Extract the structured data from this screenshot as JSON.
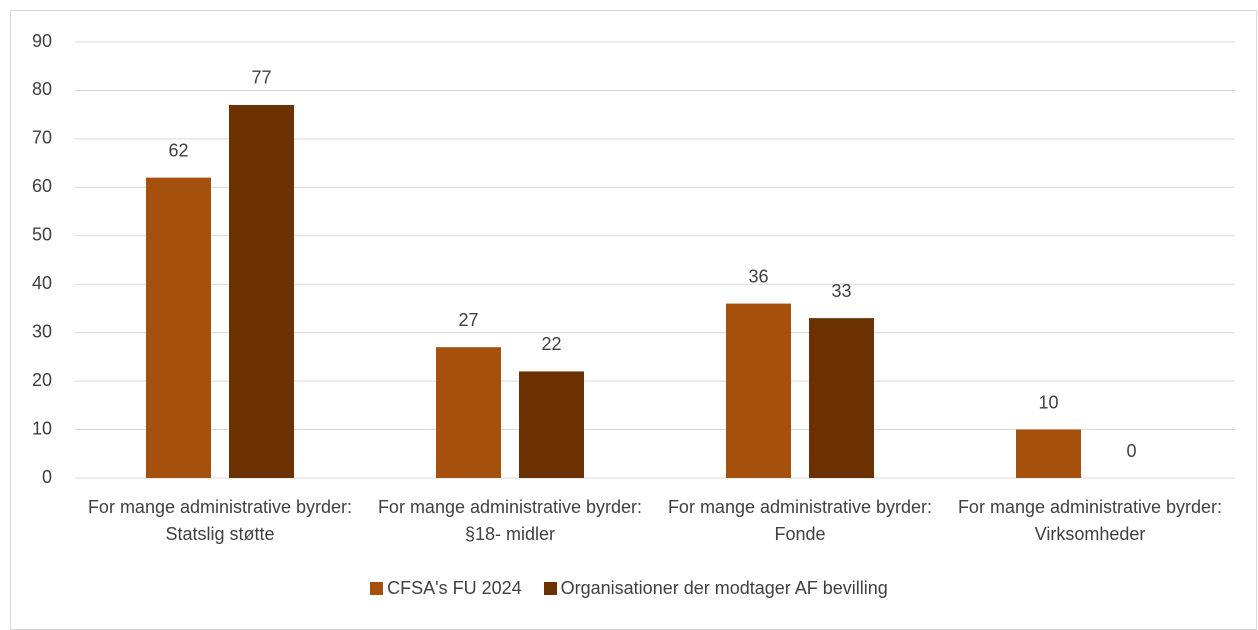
{
  "chart_data": {
    "type": "bar",
    "categories": [
      "For mange administrative byrder: Statslig støtte",
      "For mange administrative byrder: §18- midler",
      "For mange administrative byrder: Fonde",
      "For mange administrative byrder: Virksomheder"
    ],
    "series": [
      {
        "name": "CFSA's FU 2024",
        "color": "#a5500c",
        "values": [
          62,
          27,
          36,
          10
        ]
      },
      {
        "name": "Organisationer der modtager AF bevilling",
        "color": "#6b3200",
        "values": [
          77,
          22,
          33,
          0
        ]
      }
    ],
    "ylim": [
      0,
      90
    ],
    "yticks": [
      0,
      10,
      20,
      30,
      40,
      50,
      60,
      70,
      80,
      90
    ],
    "grid": true,
    "legend": "bottom"
  }
}
